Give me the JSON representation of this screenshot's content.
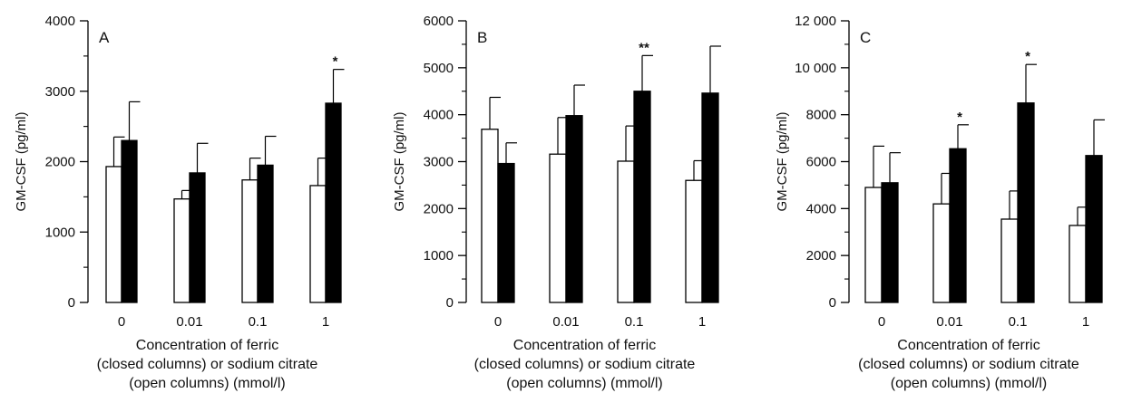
{
  "chart_data": [
    {
      "type": "bar",
      "panel": "A",
      "categories": [
        "0",
        "0.01",
        "0.1",
        "1"
      ],
      "series": [
        {
          "fill": "#ffffff",
          "values": [
            1930,
            1470,
            1740,
            1660
          ],
          "errors": [
            420,
            120,
            310,
            390
          ]
        },
        {
          "fill": "#000000",
          "values": [
            2300,
            1840,
            1950,
            2830
          ],
          "errors": [
            550,
            420,
            410,
            480
          ]
        }
      ],
      "significance": [
        {
          "category_index": 3,
          "series_index": 1,
          "label": "*"
        }
      ],
      "ylabel": "GM-CSF (pg/ml)",
      "xlabel": [
        "Concentration of ferric",
        "(closed columns) or sodium citrate",
        "(open columns) (mmol/l)"
      ],
      "ylim": [
        0,
        4000
      ],
      "yticks": [
        0,
        1000,
        2000,
        3000,
        4000
      ],
      "ytick_labels": [
        "0",
        "1000",
        "2000",
        "3000",
        "4000"
      ],
      "grid": false
    },
    {
      "type": "bar",
      "panel": "B",
      "categories": [
        "0",
        "0.01",
        "0.1",
        "1"
      ],
      "series": [
        {
          "fill": "#ffffff",
          "values": [
            3690,
            3160,
            3010,
            2600
          ],
          "errors": [
            680,
            780,
            750,
            420
          ]
        },
        {
          "fill": "#000000",
          "values": [
            2960,
            3980,
            4500,
            4460
          ],
          "errors": [
            440,
            650,
            760,
            1000
          ]
        }
      ],
      "significance": [
        {
          "category_index": 2,
          "series_index": 1,
          "label": "**"
        }
      ],
      "ylabel": "GM-CSF (pg/ml)",
      "xlabel": [
        "Concentration of ferric",
        "(closed columns) or sodium citrate",
        "(open columns) (mmol/l)"
      ],
      "ylim": [
        0,
        6000
      ],
      "yticks": [
        0,
        1000,
        2000,
        3000,
        4000,
        5000,
        6000
      ],
      "ytick_labels": [
        "0",
        "1000",
        "2000",
        "3000",
        "4000",
        "5000",
        "6000"
      ],
      "grid": false
    },
    {
      "type": "bar",
      "panel": "C",
      "categories": [
        "0",
        "0.01",
        "0.1",
        "1"
      ],
      "series": [
        {
          "fill": "#ffffff",
          "values": [
            4900,
            4200,
            3550,
            3280
          ],
          "errors": [
            1760,
            1300,
            1200,
            780
          ]
        },
        {
          "fill": "#000000",
          "values": [
            5100,
            6550,
            8500,
            6260
          ],
          "errors": [
            1280,
            1020,
            1640,
            1520
          ]
        }
      ],
      "significance": [
        {
          "category_index": 1,
          "series_index": 1,
          "label": "*"
        },
        {
          "category_index": 2,
          "series_index": 1,
          "label": "*"
        }
      ],
      "ylabel": "GM-CSF (pg/ml)",
      "xlabel": [
        "Concentration of ferric",
        "(closed columns) or sodium citrate",
        "(open columns) (mmol/l)"
      ],
      "ylim": [
        0,
        12000
      ],
      "yticks": [
        0,
        2000,
        4000,
        6000,
        8000,
        10000,
        12000
      ],
      "ytick_labels": [
        "0",
        "2000",
        "4000",
        "6000",
        "8000",
        "10 000",
        "12 000"
      ],
      "grid": false
    }
  ]
}
